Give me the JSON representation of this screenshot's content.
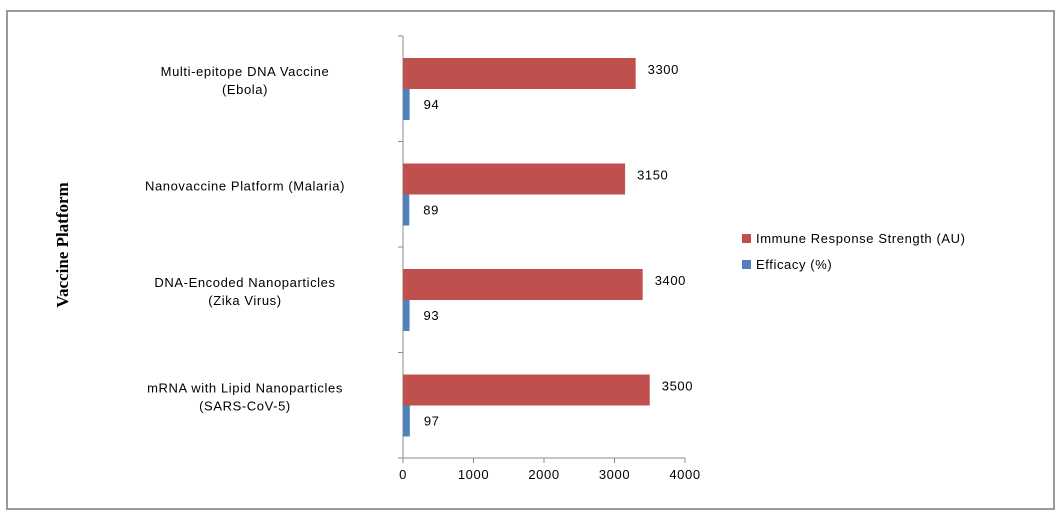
{
  "chart_data": {
    "type": "bar",
    "orientation": "horizontal",
    "title": "",
    "xlabel": "",
    "ylabel": "Vaccine Platform",
    "categories": [
      [
        "Multi-epitope DNA Vaccine",
        "(Ebola)"
      ],
      [
        "Nanovaccine Platform (Malaria)"
      ],
      [
        "DNA-Encoded Nanoparticles",
        "(Zika Virus)"
      ],
      [
        "mRNA with Lipid Nanoparticles",
        "(SARS-CoV-5)"
      ]
    ],
    "series": [
      {
        "name": "Immune Response Strength (AU)",
        "color": "#c0504d",
        "values": [
          3300,
          3150,
          3400,
          3500
        ]
      },
      {
        "name": "Efficacy (%)",
        "color": "#4f81bd",
        "values": [
          94,
          89,
          93,
          97
        ]
      }
    ],
    "xlim": [
      0,
      4000
    ],
    "xticks": [
      "0",
      "1000",
      "2000",
      "3000",
      "4000"
    ],
    "grid": false,
    "legend": "right"
  }
}
